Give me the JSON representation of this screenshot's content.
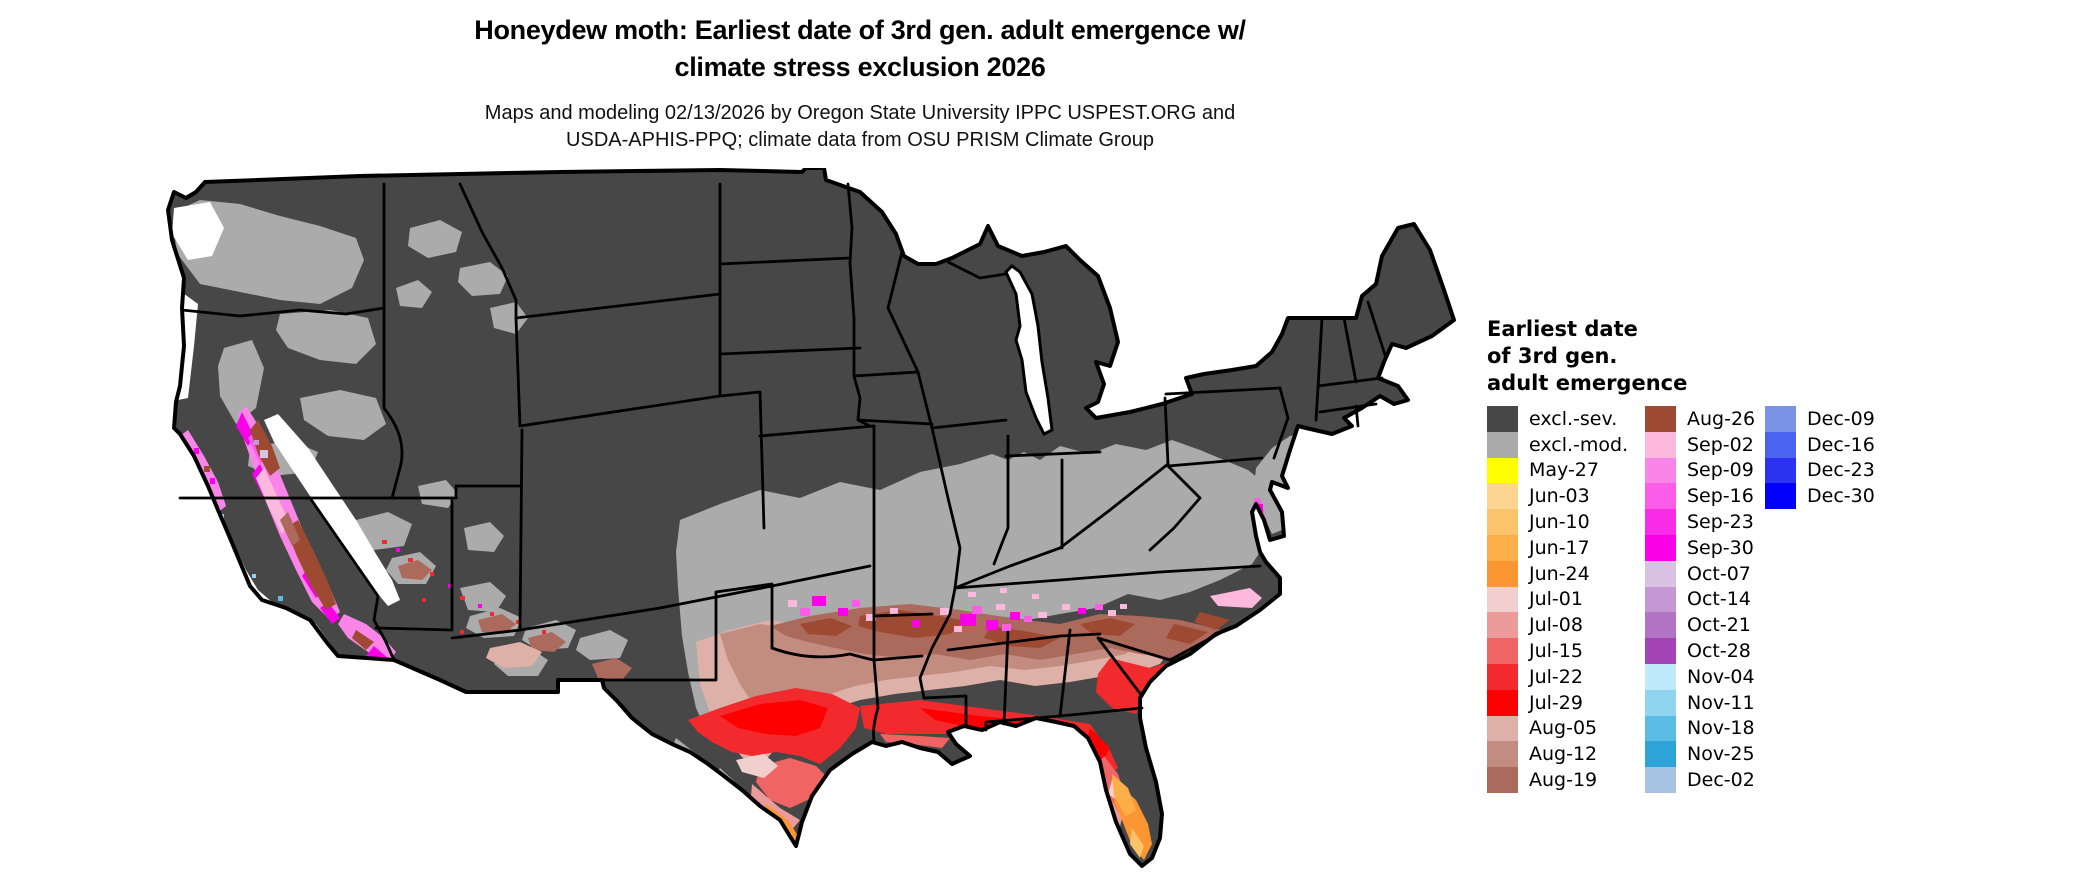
{
  "title": {
    "line1": "Honeydew moth: Earliest date of 3rd gen. adult emergence w/",
    "line2": "climate stress exclusion 2026"
  },
  "subtitle": {
    "line1": "Maps and modeling 02/13/2026 by Oregon State University IPPC USPEST.ORG and",
    "line2": "USDA-APHIS-PPQ; climate data from OSU PRISM Climate Group"
  },
  "legend": {
    "title_lines": [
      "Earliest date",
      "of 3rd gen.",
      "adult emergence"
    ],
    "columns": [
      [
        {
          "label": "excl.-sev.",
          "color": "#474747"
        },
        {
          "label": "excl.-mod.",
          "color": "#ababab"
        },
        {
          "label": "May-27",
          "color": "#ffff00"
        },
        {
          "label": "Jun-03",
          "color": "#fcd592"
        },
        {
          "label": "Jun-10",
          "color": "#fcc36a"
        },
        {
          "label": "Jun-17",
          "color": "#fcae49"
        },
        {
          "label": "Jun-24",
          "color": "#fb9633"
        },
        {
          "label": "Jul-01",
          "color": "#f2cfcf"
        },
        {
          "label": "Jul-08",
          "color": "#ec9a9a"
        },
        {
          "label": "Jul-15",
          "color": "#f06563"
        },
        {
          "label": "Jul-22",
          "color": "#f32a2d"
        },
        {
          "label": "Jul-29",
          "color": "#fe0000"
        },
        {
          "label": "Aug-05",
          "color": "#ddb1a8"
        },
        {
          "label": "Aug-12",
          "color": "#c28c80"
        },
        {
          "label": "Aug-19",
          "color": "#ab6a5c"
        }
      ],
      [
        {
          "label": "Aug-26",
          "color": "#9e4a32"
        },
        {
          "label": "Sep-02",
          "color": "#fcb8dd"
        },
        {
          "label": "Sep-09",
          "color": "#fa85e8"
        },
        {
          "label": "Sep-16",
          "color": "#fb5ce9"
        },
        {
          "label": "Sep-23",
          "color": "#fb2ce8"
        },
        {
          "label": "Sep-30",
          "color": "#fa00e8"
        },
        {
          "label": "Oct-07",
          "color": "#d9c2e4"
        },
        {
          "label": "Oct-14",
          "color": "#c598d3"
        },
        {
          "label": "Oct-21",
          "color": "#b373c4"
        },
        {
          "label": "Oct-28",
          "color": "#a344b5"
        },
        {
          "label": "Nov-04",
          "color": "#bfeafa"
        },
        {
          "label": "Nov-11",
          "color": "#90d5ef"
        },
        {
          "label": "Nov-18",
          "color": "#5bbde4"
        },
        {
          "label": "Nov-25",
          "color": "#2da3d8"
        },
        {
          "label": "Dec-02",
          "color": "#a6c3e4"
        }
      ],
      [
        {
          "label": "Dec-09",
          "color": "#7b93e6"
        },
        {
          "label": "Dec-16",
          "color": "#4a63f0"
        },
        {
          "label": "Dec-23",
          "color": "#2b33f0"
        },
        {
          "label": "Dec-30",
          "color": "#0000fb"
        }
      ]
    ]
  },
  "map": {
    "background_color": "#ffffff",
    "state_border_color": "#000000",
    "water_color": "#ffffff"
  }
}
